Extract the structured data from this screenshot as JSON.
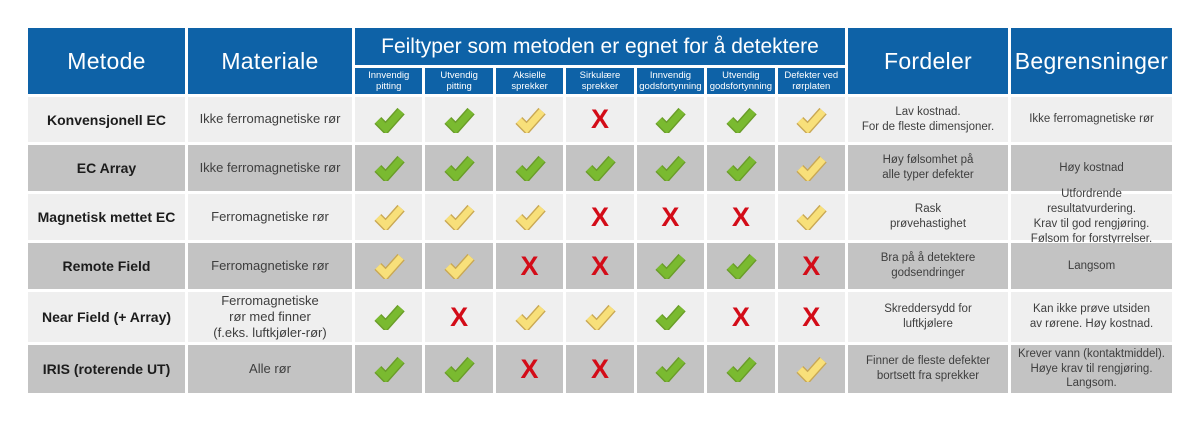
{
  "chart_data": {
    "type": "table",
    "headers": {
      "method": "Metode",
      "material": "Materiale",
      "fault_group": "Feiltyper som metoden er egnet for å detektere",
      "fault_types": [
        "Innvendig\npitting",
        "Utvendig\npitting",
        "Aksielle\nsprekker",
        "Sirkulære\nsprekker",
        "Innvendig\ngodsfortynning",
        "Utvendig\ngodsfortynning",
        "Defekter ved\nrørplaten"
      ],
      "advantages": "Fordeler",
      "limitations": "Begrensninger"
    },
    "rows": [
      {
        "method": "Konvensjonell EC",
        "material": "Ikke ferromagnetiske rør",
        "marks": [
          "green-check",
          "green-check",
          "yellow-check",
          "red-cross",
          "green-check",
          "green-check",
          "yellow-check"
        ],
        "advantages": "Lav kostnad.\nFor de fleste dimensjoner.",
        "limitations": "Ikke ferromagnetiske rør"
      },
      {
        "method": "EC Array",
        "material": "Ikke ferromagnetiske rør",
        "marks": [
          "green-check",
          "green-check",
          "green-check",
          "green-check",
          "green-check",
          "green-check",
          "yellow-check"
        ],
        "advantages": "Høy følsomhet på\nalle typer defekter",
        "limitations": "Høy kostnad"
      },
      {
        "method": "Magnetisk mettet EC",
        "material": "Ferromagnetiske rør",
        "marks": [
          "yellow-check",
          "yellow-check",
          "yellow-check",
          "red-cross",
          "red-cross",
          "red-cross",
          "yellow-check"
        ],
        "advantages": "Rask\nprøvehastighet",
        "limitations": "Utfordrende resultatvurdering.\nKrav til god rengjøring.\nFølsom for forstyrrelser."
      },
      {
        "method": "Remote Field",
        "material": "Ferromagnetiske rør",
        "marks": [
          "yellow-check",
          "yellow-check",
          "red-cross",
          "red-cross",
          "green-check",
          "green-check",
          "red-cross"
        ],
        "advantages": "Bra på å detektere\ngodsendringer",
        "limitations": "Langsom"
      },
      {
        "method": "Near Field (+ Array)",
        "material": "Ferromagnetiske\nrør med finner\n(f.eks. luftkjøler-rør)",
        "marks": [
          "green-check",
          "red-cross",
          "yellow-check",
          "yellow-check",
          "green-check",
          "red-cross",
          "red-cross"
        ],
        "advantages": "Skreddersydd for\nluftkjølere",
        "limitations": "Kan ikke prøve utsiden\nav rørene. Høy kostnad."
      },
      {
        "method": "IRIS (roterende UT)",
        "material": "Alle rør",
        "marks": [
          "green-check",
          "green-check",
          "red-cross",
          "red-cross",
          "green-check",
          "green-check",
          "yellow-check"
        ],
        "advantages": "Finner de fleste defekter\nbortsett fra sprekker",
        "limitations": "Krever vann (kontaktmiddel).\nHøye krav til rengjøring.\nLangsom."
      }
    ]
  },
  "colors": {
    "header_blue": "#0e62a7",
    "row_light": "#efefef",
    "row_dark": "#c3c3c3",
    "check_green": "#7aba30",
    "check_green_outline": "#699c28",
    "check_yellow": "#f8e07a",
    "check_yellow_outline": "#c9a854",
    "cross_red": "#d30c18"
  }
}
